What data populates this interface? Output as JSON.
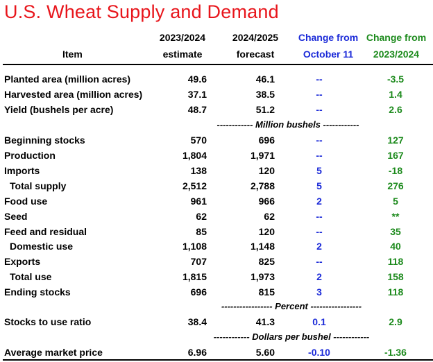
{
  "title": "U.S. Wheat Supply and Demand",
  "header": {
    "item": "Item",
    "est_line1": "2023/2024",
    "est_line2": "estimate",
    "for_line1": "2024/2025",
    "for_line2": "forecast",
    "chg1_line1": "Change from",
    "chg1_line2": "October 11",
    "chg2_line1": "Change from",
    "chg2_line2": "2023/2024"
  },
  "sections": {
    "million_bushels": "------------ Million bushels ------------",
    "percent": "----------------- Percent -----------------",
    "dollars": "------------ Dollars per bushel ------------"
  },
  "rows": [
    {
      "item": "Planted area (million acres)",
      "est": "49.6",
      "for": "46.1",
      "chg1": "--",
      "chg2": "-3.5"
    },
    {
      "item": "Harvested area (million acres)",
      "est": "37.1",
      "for": "38.5",
      "chg1": "--",
      "chg2": "1.4"
    },
    {
      "item": "Yield (bushels per acre)",
      "est": "48.7",
      "for": "51.2",
      "chg1": "--",
      "chg2": "2.6"
    },
    {
      "item": "Beginning stocks",
      "est": "570",
      "for": "696",
      "chg1": "--",
      "chg2": "127"
    },
    {
      "item": "Production",
      "est": "1,804",
      "for": "1,971",
      "chg1": "--",
      "chg2": "167"
    },
    {
      "item": "Imports",
      "est": "138",
      "for": "120",
      "chg1": "5",
      "chg2": "-18"
    },
    {
      "item": "Total supply",
      "est": "2,512",
      "for": "2,788",
      "chg1": "5",
      "chg2": "276"
    },
    {
      "item": "Food use",
      "est": "961",
      "for": "966",
      "chg1": "2",
      "chg2": "5"
    },
    {
      "item": "Seed",
      "est": "62",
      "for": "62",
      "chg1": "--",
      "chg2": "**"
    },
    {
      "item": "Feed and residual",
      "est": "85",
      "for": "120",
      "chg1": "--",
      "chg2": "35"
    },
    {
      "item": "Domestic use",
      "est": "1,108",
      "for": "1,148",
      "chg1": "2",
      "chg2": "40"
    },
    {
      "item": "Exports",
      "est": "707",
      "for": "825",
      "chg1": "--",
      "chg2": "118"
    },
    {
      "item": "Total use",
      "est": "1,815",
      "for": "1,973",
      "chg1": "2",
      "chg2": "158"
    },
    {
      "item": "Ending stocks",
      "est": "696",
      "for": "815",
      "chg1": "3",
      "chg2": "118"
    },
    {
      "item": "Stocks to use ratio",
      "est": "38.4",
      "for": "41.3",
      "chg1": "0.1",
      "chg2": "2.9"
    },
    {
      "item": "Average market price",
      "est": "6.96",
      "for": "5.60",
      "chg1": "-0.10",
      "chg2": "-1.36"
    }
  ],
  "colors": {
    "title": "#e8151b",
    "change_oct": "#1b2ad8",
    "change_year": "#1c8a1c"
  }
}
